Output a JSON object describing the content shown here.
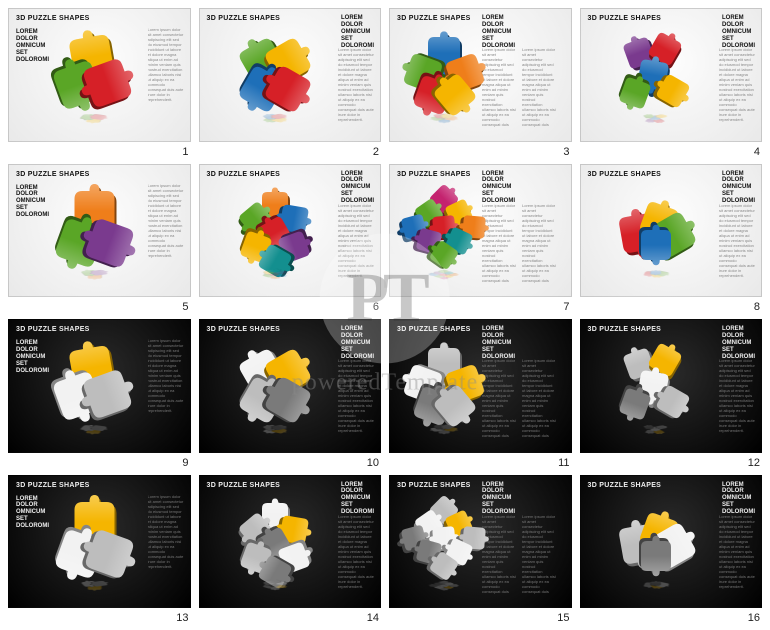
{
  "watermark": {
    "circle_text": "PT",
    "label": "poweredTemplate"
  },
  "common": {
    "title": "3D PUZZLE SHAPES",
    "subtitle": "LOREM\nDOLOR\nOMNICUM\nSET\nDOLOROMI",
    "lorem": "Lorem ipsum dolor sit amet consectetur adipiscing elit sed do eiusmod tempor incididunt ut labore et dolore magna aliqua ut enim ad minim veniam quis nostrud exercitation ullamco laboris nisi ut aliquip ex ea commodo consequat duis aute irure dolor in reprehenderit."
  },
  "palette": {
    "yellow": "#f5b500",
    "red": "#d62027",
    "green": "#5aa626",
    "blue": "#1e6fb8",
    "orange": "#ef7e1a",
    "purple": "#7a3a8e",
    "magenta": "#c4236f",
    "teal": "#138f8f",
    "white": "#f2f2f2",
    "grey": "#bdbdbd",
    "dgrey": "#7a7a7a"
  },
  "slides": [
    {
      "n": 1,
      "bg": "light",
      "variant": "A",
      "shape": "blob3",
      "colors": [
        "yellow",
        "green",
        "red"
      ]
    },
    {
      "n": 2,
      "bg": "light",
      "variant": "B",
      "shape": "disc4",
      "colors": [
        "green",
        "yellow",
        "blue",
        "red"
      ]
    },
    {
      "n": 3,
      "bg": "light",
      "variant": "C",
      "shape": "sphere5",
      "colors": [
        "blue",
        "green",
        "orange",
        "red",
        "yellow"
      ]
    },
    {
      "n": 4,
      "bg": "light",
      "variant": "B",
      "shape": "scatter5",
      "colors": [
        "purple",
        "red",
        "blue",
        "green",
        "yellow"
      ]
    },
    {
      "n": 5,
      "bg": "light",
      "variant": "A",
      "shape": "tri3",
      "colors": [
        "orange",
        "green",
        "purple"
      ]
    },
    {
      "n": 6,
      "bg": "light",
      "variant": "B",
      "shape": "cluster7",
      "colors": [
        "orange",
        "green",
        "blue",
        "red",
        "yellow",
        "purple",
        "teal"
      ]
    },
    {
      "n": 7,
      "bg": "light",
      "variant": "C",
      "shape": "diamond9",
      "colors": [
        "magenta",
        "green",
        "yellow",
        "blue",
        "red",
        "orange",
        "purple",
        "teal",
        "green"
      ]
    },
    {
      "n": 8,
      "bg": "light",
      "variant": "B",
      "shape": "cloud4",
      "colors": [
        "red",
        "yellow",
        "green",
        "blue"
      ]
    },
    {
      "n": 9,
      "bg": "dark",
      "variant": "A",
      "shape": "blob3",
      "colors": [
        "yellow",
        "white",
        "grey"
      ]
    },
    {
      "n": 10,
      "bg": "dark",
      "variant": "B",
      "shape": "disc4",
      "colors": [
        "white",
        "yellow",
        "grey",
        "dgrey"
      ]
    },
    {
      "n": 11,
      "bg": "dark",
      "variant": "C",
      "shape": "sphere5",
      "colors": [
        "grey",
        "white",
        "yellow",
        "dgrey",
        "grey"
      ]
    },
    {
      "n": 12,
      "bg": "dark",
      "variant": "B",
      "shape": "scatter5",
      "colors": [
        "grey",
        "yellow",
        "white",
        "dgrey",
        "grey"
      ]
    },
    {
      "n": 13,
      "bg": "dark",
      "variant": "A",
      "shape": "tri3",
      "colors": [
        "yellow",
        "white",
        "grey"
      ]
    },
    {
      "n": 14,
      "bg": "dark",
      "variant": "B",
      "shape": "cluster7",
      "colors": [
        "white",
        "grey",
        "yellow",
        "dgrey",
        "grey",
        "white",
        "dgrey"
      ]
    },
    {
      "n": 15,
      "bg": "dark",
      "variant": "C",
      "shape": "diamond9",
      "colors": [
        "grey",
        "white",
        "yellow",
        "dgrey",
        "white",
        "grey",
        "dgrey",
        "white",
        "grey"
      ]
    },
    {
      "n": 16,
      "bg": "dark",
      "variant": "B",
      "shape": "cloud4",
      "colors": [
        "grey",
        "yellow",
        "white",
        "dgrey"
      ]
    }
  ]
}
